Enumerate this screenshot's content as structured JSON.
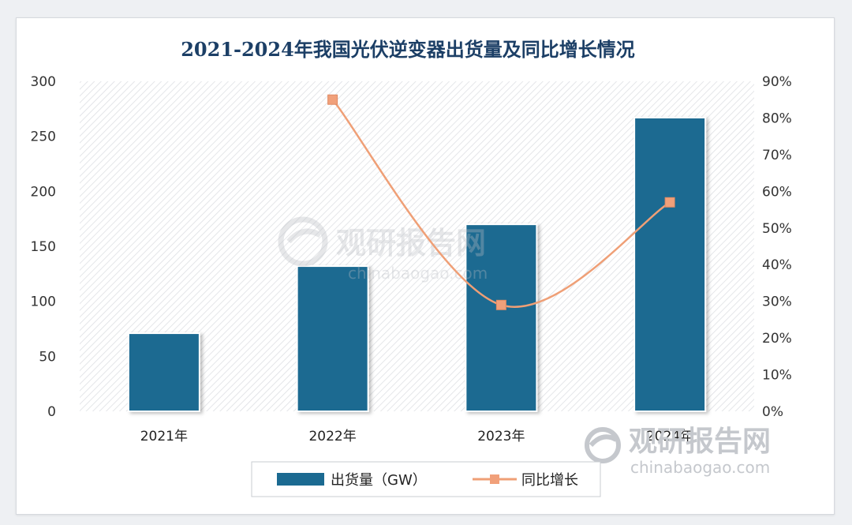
{
  "chart_data": {
    "type": "bar",
    "title": "2021-2024年我国光伏逆变器出货量及同比增长情况",
    "categories": [
      "2021年",
      "2022年",
      "2023年",
      "2024年"
    ],
    "series": [
      {
        "name": "出货量（GW）",
        "type": "bar",
        "axis": "left",
        "values": [
          71,
          132,
          170,
          267
        ],
        "color": "#1b6a91"
      },
      {
        "name": "同比增长",
        "type": "line",
        "axis": "right",
        "values": [
          null,
          85,
          29,
          57
        ],
        "color": "#ef9f76"
      }
    ],
    "y_left": {
      "min": 0,
      "max": 300,
      "ticks": [
        "0",
        "50",
        "100",
        "150",
        "200",
        "250",
        "300"
      ]
    },
    "y_right": {
      "min": 0,
      "max": 90,
      "ticks": [
        "0%",
        "10%",
        "20%",
        "30%",
        "40%",
        "50%",
        "60%",
        "70%",
        "80%",
        "90%"
      ]
    },
    "legend_position": "bottom"
  },
  "watermark": {
    "center_cn": "观研报告网",
    "center_en": "chinabaogao.com",
    "corner_cn": "观研报告网",
    "corner_en": "chinabaogao.com"
  },
  "colors": {
    "title": "#1c3f66",
    "plot_bg": "#ffffff",
    "hatch": "#dcdee2"
  }
}
